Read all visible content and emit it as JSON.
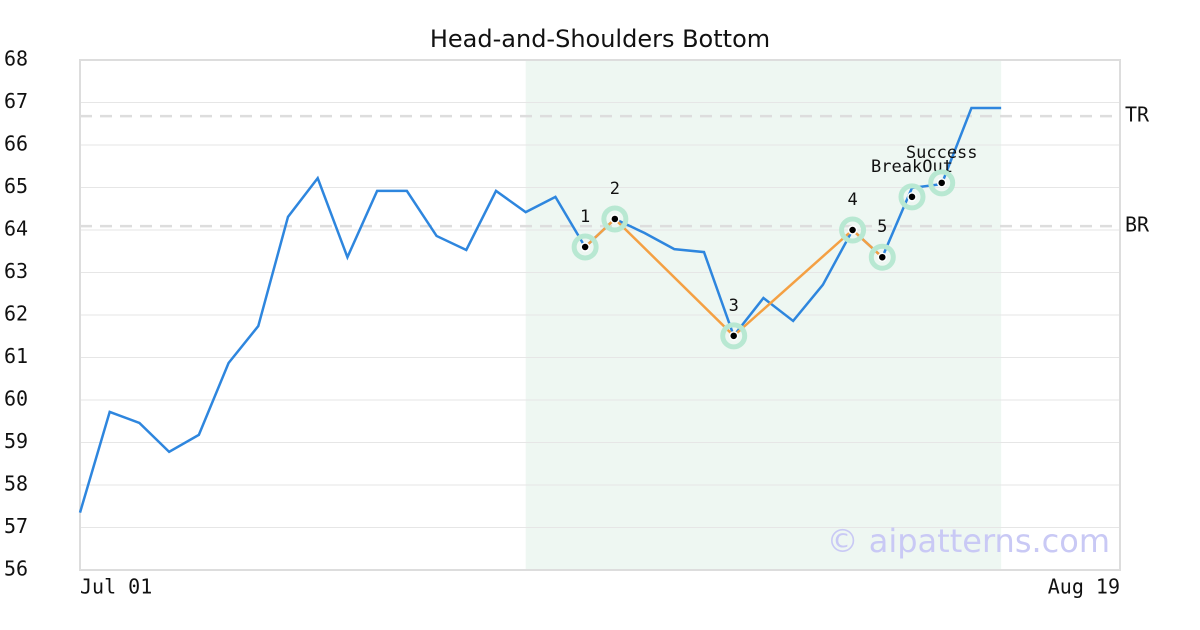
{
  "chart_data": {
    "type": "line",
    "title": "Head-and-Shoulders Bottom",
    "x": [
      0,
      1,
      2,
      3,
      4,
      5,
      6,
      7,
      8,
      9,
      10,
      11,
      12,
      13,
      14,
      15,
      16,
      17,
      18,
      19,
      20,
      21,
      22,
      23,
      24,
      25,
      26,
      27,
      28,
      29,
      30,
      31
    ],
    "values": [
      57.35,
      59.72,
      59.46,
      58.78,
      59.18,
      60.87,
      61.74,
      64.31,
      65.22,
      63.36,
      64.92,
      64.92,
      63.86,
      63.53,
      64.92,
      64.42,
      64.78,
      63.6,
      64.26,
      63.93,
      63.55,
      63.48,
      61.51,
      62.4,
      61.86,
      62.71,
      64.0,
      63.36,
      64.99,
      65.08,
      66.87,
      66.87
    ],
    "color": "#2e86de",
    "xlim": [
      0,
      35
    ],
    "xticks": [
      {
        "value": 0,
        "label": "Jul 01"
      },
      {
        "value": 35,
        "label": "Aug 19"
      }
    ],
    "ylim": [
      56,
      68
    ],
    "yticks": [
      56,
      57,
      58,
      59,
      60,
      61,
      62,
      63,
      64,
      65,
      66,
      67,
      68
    ],
    "grid": true,
    "highlight": {
      "x": [
        15,
        31
      ],
      "color": "#eef7f2"
    },
    "pattern": {
      "x": [
        17,
        18,
        22,
        26,
        27
      ],
      "values": [
        63.6,
        64.26,
        61.51,
        64.0,
        63.36
      ],
      "labels": [
        "1",
        "2",
        "3",
        "4",
        "5"
      ],
      "color": "#f4a043"
    },
    "signals": {
      "x": [
        28,
        29
      ],
      "values": [
        64.78,
        65.11
      ],
      "labels": [
        "BreakOut",
        "Success"
      ]
    },
    "levels": [
      {
        "label": "TR",
        "value": 66.68
      },
      {
        "label": "BR",
        "value": 64.09
      }
    ],
    "watermark": "© aipatterns.com"
  }
}
